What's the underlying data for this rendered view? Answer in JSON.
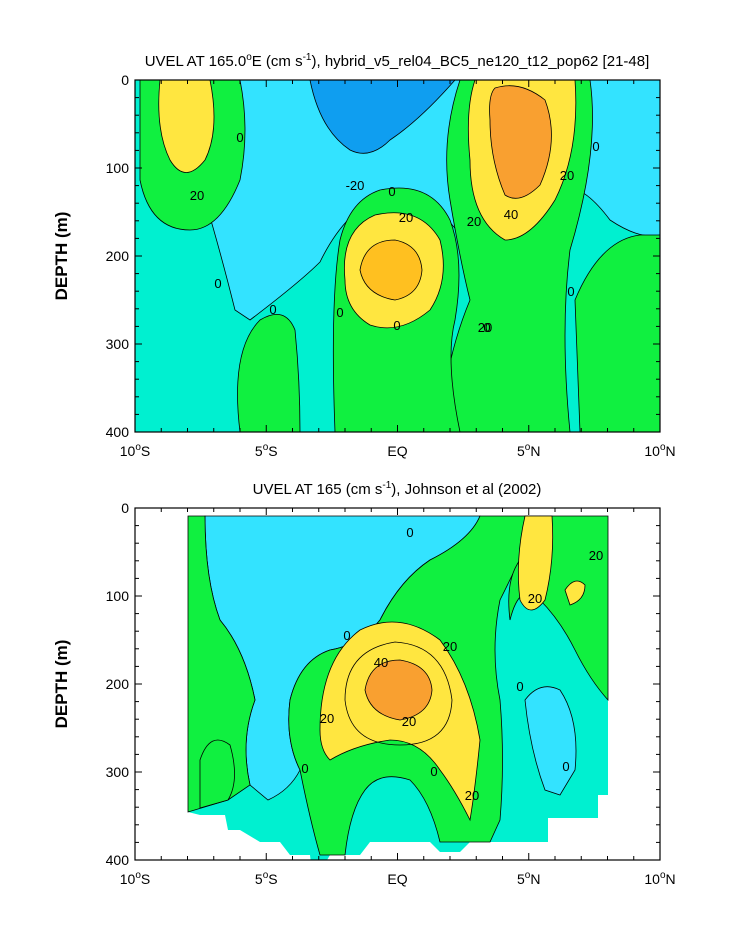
{
  "chart_data": [
    {
      "type": "contour",
      "title": {
        "base": "UVEL AT 165.0",
        "sup1": "o",
        "mid": "E (cm s",
        "sup2": "-1",
        "end": "), hybrid_v5_rel04_BC5_ne120_t12_pop62 [21-48]"
      },
      "ylabel": "DEPTH (m)",
      "xlim": [
        -10,
        10
      ],
      "ylim": [
        400,
        0
      ],
      "yticks": [
        "0",
        "100",
        "200",
        "300",
        "400"
      ],
      "xticks": [
        {
          "num": "10",
          "deg": "o",
          "hemi": "S"
        },
        {
          "num": "5",
          "deg": "o",
          "hemi": "S"
        },
        {
          "num": "EQ",
          "deg": "",
          "hemi": ""
        },
        {
          "num": "5",
          "deg": "o",
          "hemi": "N"
        },
        {
          "num": "10",
          "deg": "o",
          "hemi": "N"
        }
      ],
      "contour_labels": [
        "0",
        "20",
        "0",
        "0",
        "0",
        "-20",
        "0",
        "20",
        "0",
        "20",
        "20",
        "40",
        "20",
        "0",
        "0",
        "0"
      ],
      "colors": {
        "neg20": "#0f9ef0",
        "neg10": "#33e3ff",
        "zero": "#00f0d0",
        "pos": "#10f040",
        "pos20": "#ffe640",
        "pos30": "#ffc020",
        "pos40": "#f9a030"
      }
    },
    {
      "type": "contour",
      "title": {
        "base": "UVEL AT 165 (cm s",
        "sup1": "-1",
        "mid": "), Johnson et al (2002)",
        "sup2": "",
        "end": ""
      },
      "ylabel": "DEPTH (m)",
      "xlim": [
        -10,
        10
      ],
      "ylim": [
        400,
        0
      ],
      "yticks": [
        "0",
        "100",
        "200",
        "300",
        "400"
      ],
      "xticks": [
        {
          "num": "10",
          "deg": "o",
          "hemi": "S"
        },
        {
          "num": "5",
          "deg": "o",
          "hemi": "S"
        },
        {
          "num": "EQ",
          "deg": "",
          "hemi": ""
        },
        {
          "num": "5",
          "deg": "o",
          "hemi": "N"
        },
        {
          "num": "10",
          "deg": "o",
          "hemi": "N"
        }
      ],
      "contour_labels": [
        "0",
        "20",
        "20",
        "0",
        "40",
        "20",
        "20",
        "20",
        "0",
        "0",
        "0",
        "0",
        "20"
      ]
    }
  ]
}
